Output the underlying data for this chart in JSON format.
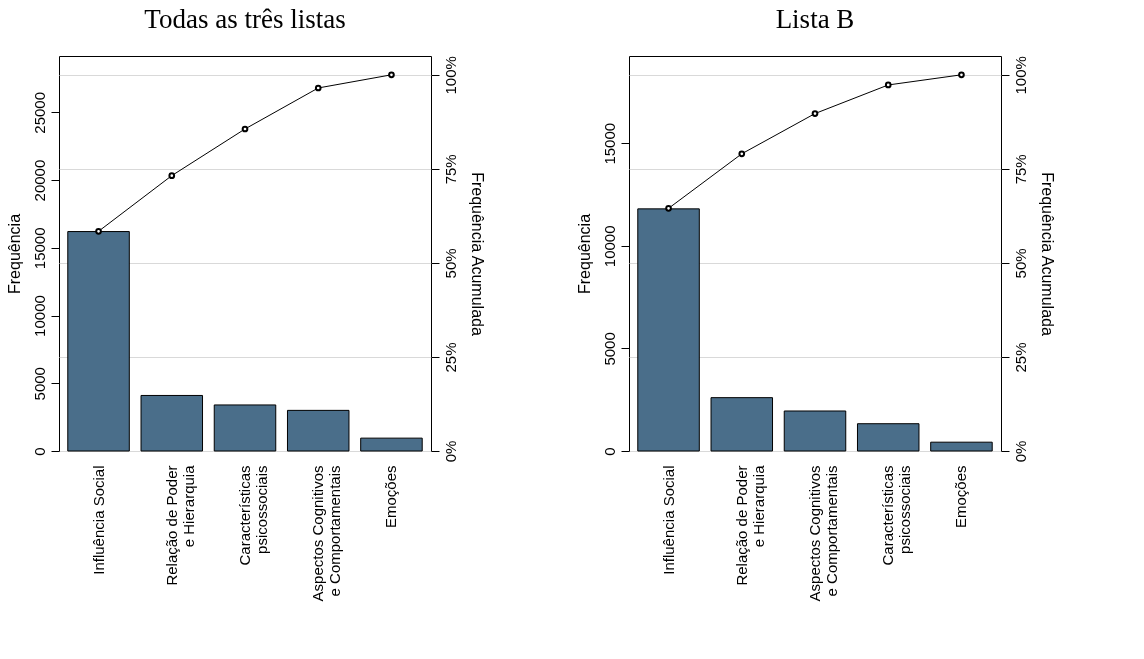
{
  "chart_data": [
    {
      "type": "bar",
      "title": "Todas as três listas",
      "categories": [
        "Influência Social",
        "Relação de Poder\ne Hierarquia",
        "Características\npsicossociais",
        "Aspectos Cognitivos\ne Comportamentais",
        "Emoções"
      ],
      "ylabel": "Frequência",
      "y2label": "Frequência Acumulada",
      "ylim": [
        0,
        29160
      ],
      "yticks": [
        0,
        5000,
        10000,
        15000,
        20000,
        25000
      ],
      "y2lim": [
        0,
        105
      ],
      "y2ticks": [
        {
          "value": 0,
          "label": "0%"
        },
        {
          "value": 25,
          "label": "25%"
        },
        {
          "value": 50,
          "label": "50%"
        },
        {
          "value": 75,
          "label": "75%"
        },
        {
          "value": 100,
          "label": "100%"
        }
      ],
      "grid": true,
      "marker": "circle",
      "series": [
        {
          "color": "#4a6e8a",
          "values": [
            16200,
            4100,
            3400,
            3000,
            950
          ]
        },
        {
          "type": "line",
          "axis": "y2",
          "color": "#000000",
          "values": [
            58.4,
            73.2,
            85.6,
            96.5,
            100
          ]
        }
      ]
    },
    {
      "type": "bar",
      "title": "Lista B",
      "categories": [
        "Influência Social",
        "Relação de Poder\ne Hierarquia",
        "Aspectos Cognitivos\ne Comportamentais",
        "Características\npsicossociais",
        "Emoções"
      ],
      "ylabel": "Frequência",
      "y2label": "Frequência Acumulada",
      "ylim": [
        0,
        19250
      ],
      "yticks": [
        0,
        5000,
        10000,
        15000
      ],
      "y2lim": [
        0,
        105
      ],
      "y2ticks": [
        {
          "value": 0,
          "label": "0%"
        },
        {
          "value": 25,
          "label": "25%"
        },
        {
          "value": 50,
          "label": "50%"
        },
        {
          "value": 75,
          "label": "75%"
        },
        {
          "value": 100,
          "label": "100%"
        }
      ],
      "grid": true,
      "marker": "circle",
      "series": [
        {
          "color": "#4a6e8a",
          "values": [
            11800,
            2600,
            1950,
            1330,
            430
          ]
        },
        {
          "type": "line",
          "axis": "y2",
          "color": "#000000",
          "values": [
            64.5,
            79.0,
            89.7,
            97.3,
            100
          ]
        }
      ]
    }
  ]
}
